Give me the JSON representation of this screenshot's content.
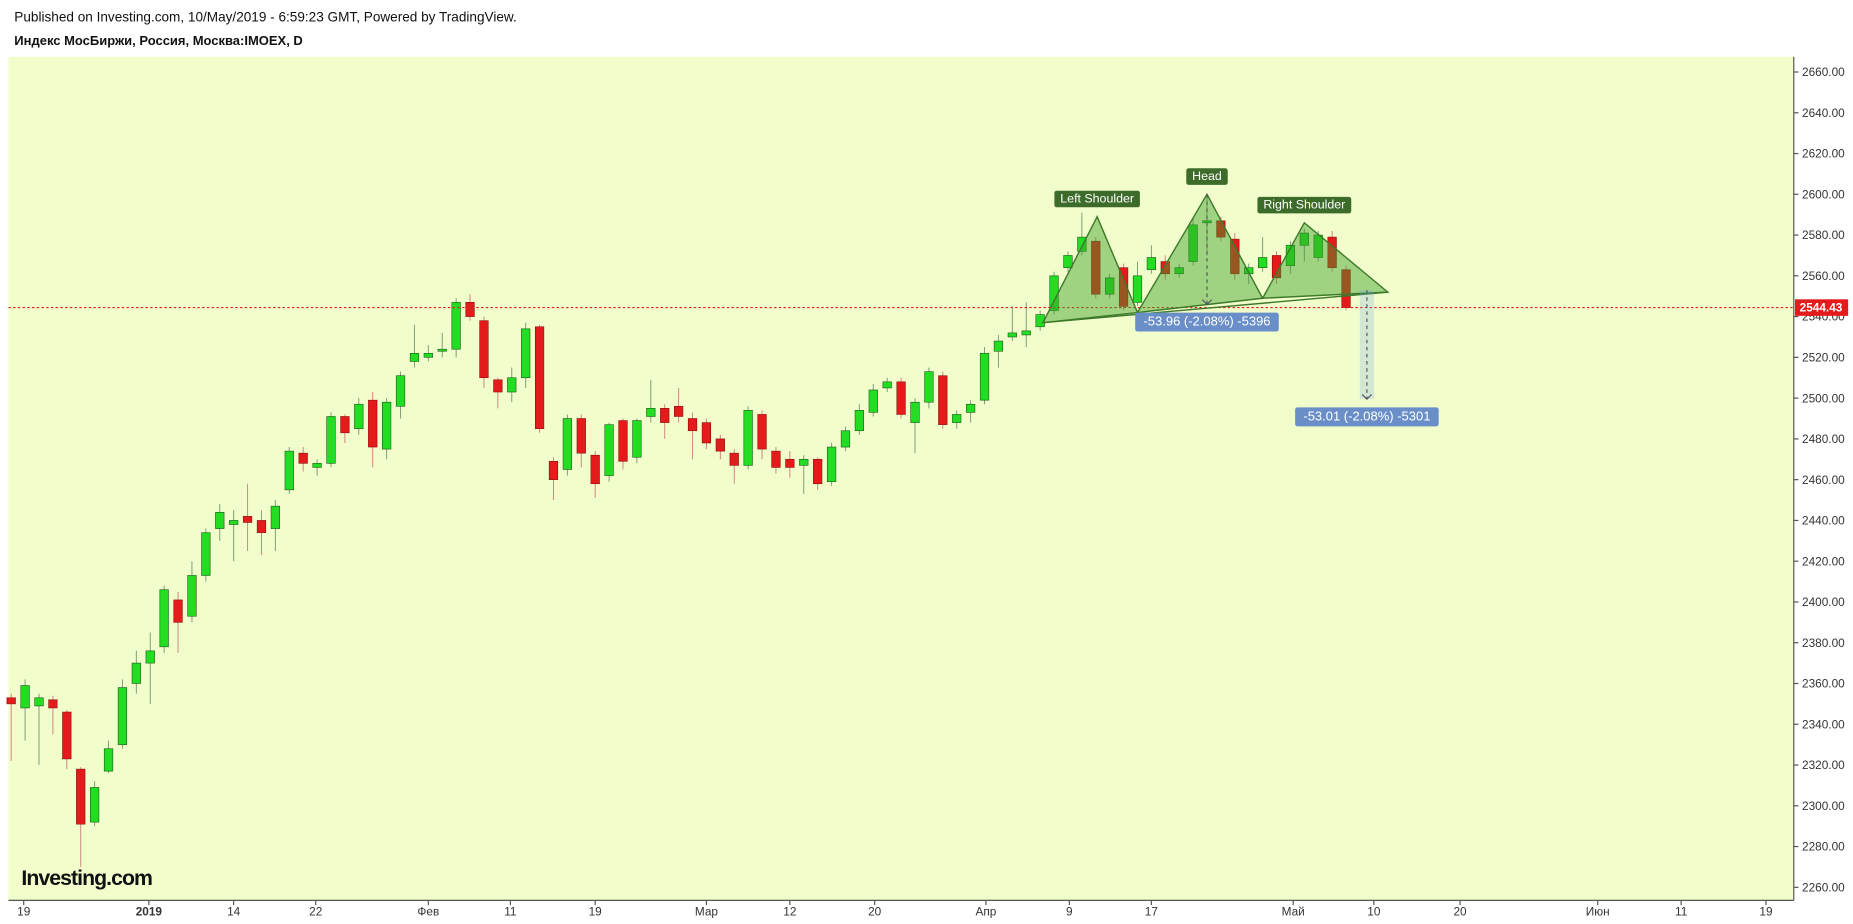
{
  "header": {
    "published": "Published on Investing.com, 10/May/2019 - 6:59:23 GMT, Powered by TradingView.",
    "symbol": "Индекс МосБиржи, Россия, Москва:IMOEX, D"
  },
  "logo": "Investing.com",
  "chart_data": {
    "type": "candlestick",
    "x": [
      0,
      1,
      2,
      3,
      4,
      5,
      6,
      7,
      8,
      9,
      10,
      11,
      12,
      13,
      14,
      15,
      16,
      17,
      18,
      19,
      20,
      21,
      22,
      23,
      24,
      25,
      26,
      27,
      28,
      29,
      30,
      31,
      32,
      33,
      34,
      35,
      36,
      37,
      38,
      39,
      40,
      41,
      42,
      43,
      44,
      45,
      46,
      47,
      48,
      49,
      50,
      51,
      52,
      53,
      54,
      55,
      56,
      57,
      58,
      59,
      60,
      61,
      62,
      63,
      64,
      65,
      66,
      67,
      68,
      69,
      70,
      71,
      72,
      73,
      74,
      75,
      76,
      77,
      78,
      79,
      80,
      81,
      82,
      83,
      84,
      85,
      86,
      87,
      88,
      89,
      90,
      91,
      92,
      93,
      94,
      95,
      96
    ],
    "open": [
      2353,
      2348,
      2349,
      2352,
      2346,
      2318,
      2292,
      2317,
      2330,
      2360,
      2370,
      2378,
      2401,
      2393,
      2413,
      2436,
      2438,
      2442,
      2440,
      2436,
      2455,
      2473,
      2466,
      2468,
      2491,
      2485,
      2499,
      2475,
      2496,
      2518,
      2520,
      2523,
      2524,
      2547,
      2538,
      2509,
      2503,
      2510,
      2535,
      2469,
      2465,
      2490,
      2472,
      2462,
      2489,
      2471,
      2491,
      2495,
      2496,
      2490,
      2488,
      2480,
      2473,
      2467,
      2492,
      2474,
      2470,
      2467,
      2470,
      2459,
      2476,
      2484,
      2493,
      2505,
      2508,
      2488,
      2498,
      2511,
      2488,
      2493,
      2499,
      2523,
      2530,
      2531,
      2535,
      2543,
      2564,
      2572,
      2577,
      2551,
      2564,
      2547,
      2563,
      2567,
      2561,
      2567,
      2586,
      2587,
      2578,
      2561,
      2564,
      2570,
      2565,
      2575,
      2569,
      2579,
      2563
    ],
    "high": [
      2355,
      2362,
      2355,
      2354,
      2347,
      2319,
      2312,
      2332,
      2362,
      2376,
      2385,
      2408,
      2405,
      2420,
      2436,
      2448,
      2445,
      2458,
      2445,
      2450,
      2476,
      2476,
      2470,
      2493,
      2492,
      2500,
      2503,
      2500,
      2513,
      2536,
      2526,
      2532,
      2549,
      2551,
      2540,
      2510,
      2515,
      2537,
      2536,
      2471,
      2492,
      2492,
      2474,
      2488,
      2490,
      2490,
      2509,
      2497,
      2505,
      2493,
      2490,
      2482,
      2475,
      2496,
      2494,
      2476,
      2474,
      2472,
      2471,
      2478,
      2486,
      2497,
      2507,
      2510,
      2510,
      2500,
      2515,
      2513,
      2494,
      2499,
      2525,
      2531,
      2545,
      2547,
      2543,
      2562,
      2572,
      2591,
      2579,
      2561,
      2566,
      2567,
      2575,
      2570,
      2566,
      2588,
      2600,
      2589,
      2581,
      2566,
      2579,
      2572,
      2577,
      2583,
      2582,
      2582,
      2565
    ],
    "low": [
      2322,
      2332,
      2320,
      2335,
      2318,
      2270,
      2290,
      2316,
      2328,
      2355,
      2350,
      2375,
      2375,
      2390,
      2410,
      2430,
      2420,
      2425,
      2423,
      2425,
      2453,
      2464,
      2462,
      2466,
      2478,
      2482,
      2466,
      2470,
      2490,
      2515,
      2518,
      2520,
      2520,
      2538,
      2505,
      2495,
      2498,
      2505,
      2483,
      2450,
      2462,
      2466,
      2451,
      2459,
      2465,
      2468,
      2488,
      2480,
      2488,
      2470,
      2475,
      2470,
      2458,
      2465,
      2470,
      2463,
      2461,
      2453,
      2455,
      2457,
      2474,
      2482,
      2491,
      2503,
      2490,
      2473,
      2495,
      2485,
      2485,
      2488,
      2497,
      2515,
      2528,
      2525,
      2533,
      2541,
      2562,
      2570,
      2549,
      2549,
      2543,
      2545,
      2561,
      2558,
      2559,
      2565,
      2570,
      2577,
      2558,
      2556,
      2562,
      2556,
      2561,
      2567,
      2567,
      2562,
      2543
    ],
    "close": [
      2350,
      2359,
      2353,
      2348,
      2323,
      2291,
      2309,
      2328,
      2358,
      2370,
      2376,
      2406,
      2390,
      2413,
      2434,
      2444,
      2440,
      2439,
      2434,
      2447,
      2474,
      2468,
      2468,
      2491,
      2483,
      2497,
      2476,
      2498,
      2511,
      2522,
      2522,
      2524,
      2547,
      2540,
      2510,
      2503,
      2510,
      2534,
      2485,
      2460,
      2490,
      2473,
      2458,
      2487,
      2469,
      2489,
      2495,
      2488,
      2491,
      2484,
      2478,
      2474,
      2467,
      2494,
      2475,
      2466,
      2466,
      2470,
      2458,
      2476,
      2484,
      2494,
      2504,
      2508,
      2492,
      2498,
      2513,
      2487,
      2492,
      2497,
      2522,
      2528,
      2532,
      2533,
      2541,
      2560,
      2570,
      2579,
      2551,
      2559,
      2545,
      2560,
      2569,
      2561,
      2564,
      2585,
      2587,
      2579,
      2561,
      2564,
      2569,
      2559,
      2575,
      2581,
      2580,
      2564,
      2544.43
    ],
    "up_color": "#22dd22",
    "down_color": "#e51a1a",
    "xlim": [
      -0.2,
      128.2
    ],
    "xticks": [
      {
        "value": 0.9,
        "label": "19"
      },
      {
        "value": 9.9,
        "label": "2019"
      },
      {
        "value": 16,
        "label": "14"
      },
      {
        "value": 21.9,
        "label": "22"
      },
      {
        "value": 30,
        "label": "Фев"
      },
      {
        "value": 35.9,
        "label": "11"
      },
      {
        "value": 42,
        "label": "19"
      },
      {
        "value": 50,
        "label": "Мар"
      },
      {
        "value": 56,
        "label": "12"
      },
      {
        "value": 62.1,
        "label": "20"
      },
      {
        "value": 70.1,
        "label": "Апр"
      },
      {
        "value": 76.1,
        "label": "9"
      },
      {
        "value": 82,
        "label": "17"
      },
      {
        "value": 92.2,
        "label": "Май"
      },
      {
        "value": 98,
        "label": "10"
      },
      {
        "value": 104.2,
        "label": "20"
      },
      {
        "value": 114.1,
        "label": "Июн"
      },
      {
        "value": 120.1,
        "label": "11"
      },
      {
        "value": 126.2,
        "label": "19"
      }
    ],
    "ylim": [
      2253.6,
      2667.5
    ],
    "yticks": [
      {
        "value": 2260,
        "label": "2260.00"
      },
      {
        "value": 2280,
        "label": "2280.00"
      },
      {
        "value": 2300,
        "label": "2300.00"
      },
      {
        "value": 2320,
        "label": "2320.00"
      },
      {
        "value": 2340,
        "label": "2340.00"
      },
      {
        "value": 2360,
        "label": "2360.00"
      },
      {
        "value": 2380,
        "label": "2380.00"
      },
      {
        "value": 2400,
        "label": "2400.00"
      },
      {
        "value": 2420,
        "label": "2420.00"
      },
      {
        "value": 2440,
        "label": "2440.00"
      },
      {
        "value": 2460,
        "label": "2460.00"
      },
      {
        "value": 2480,
        "label": "2480.00"
      },
      {
        "value": 2500,
        "label": "2500.00"
      },
      {
        "value": 2520,
        "label": "2520.00"
      },
      {
        "value": 2540,
        "label": "2540.00"
      },
      {
        "value": 2560,
        "label": "2560.00"
      },
      {
        "value": 2580,
        "label": "2580.00"
      },
      {
        "value": 2600,
        "label": "2600.00"
      },
      {
        "value": 2620,
        "label": "2620.00"
      },
      {
        "value": 2640,
        "label": "2640.00"
      },
      {
        "value": 2660,
        "label": "2660.00"
      }
    ],
    "last_price": {
      "value": 2544.43,
      "label": "2544.43"
    },
    "pattern": {
      "points": [
        {
          "x": 74.2,
          "y": 2537
        },
        {
          "x": 78.1,
          "y": 2589
        },
        {
          "x": 81,
          "y": 2542
        },
        {
          "x": 86,
          "y": 2600
        },
        {
          "x": 90,
          "y": 2549
        },
        {
          "x": 93,
          "y": 2586
        },
        {
          "x": 99,
          "y": 2552
        }
      ],
      "labels": [
        "Left Shoulder",
        "Head",
        "Right Shoulder"
      ]
    },
    "measures": [
      {
        "x": 86,
        "from": 2600,
        "to": 2546,
        "label": "-53.96 (-2.08%) -5396"
      },
      {
        "x": 97.5,
        "from": 2553,
        "to": 2499.5,
        "label": "-53.01 (-2.08%) -5301"
      }
    ]
  }
}
